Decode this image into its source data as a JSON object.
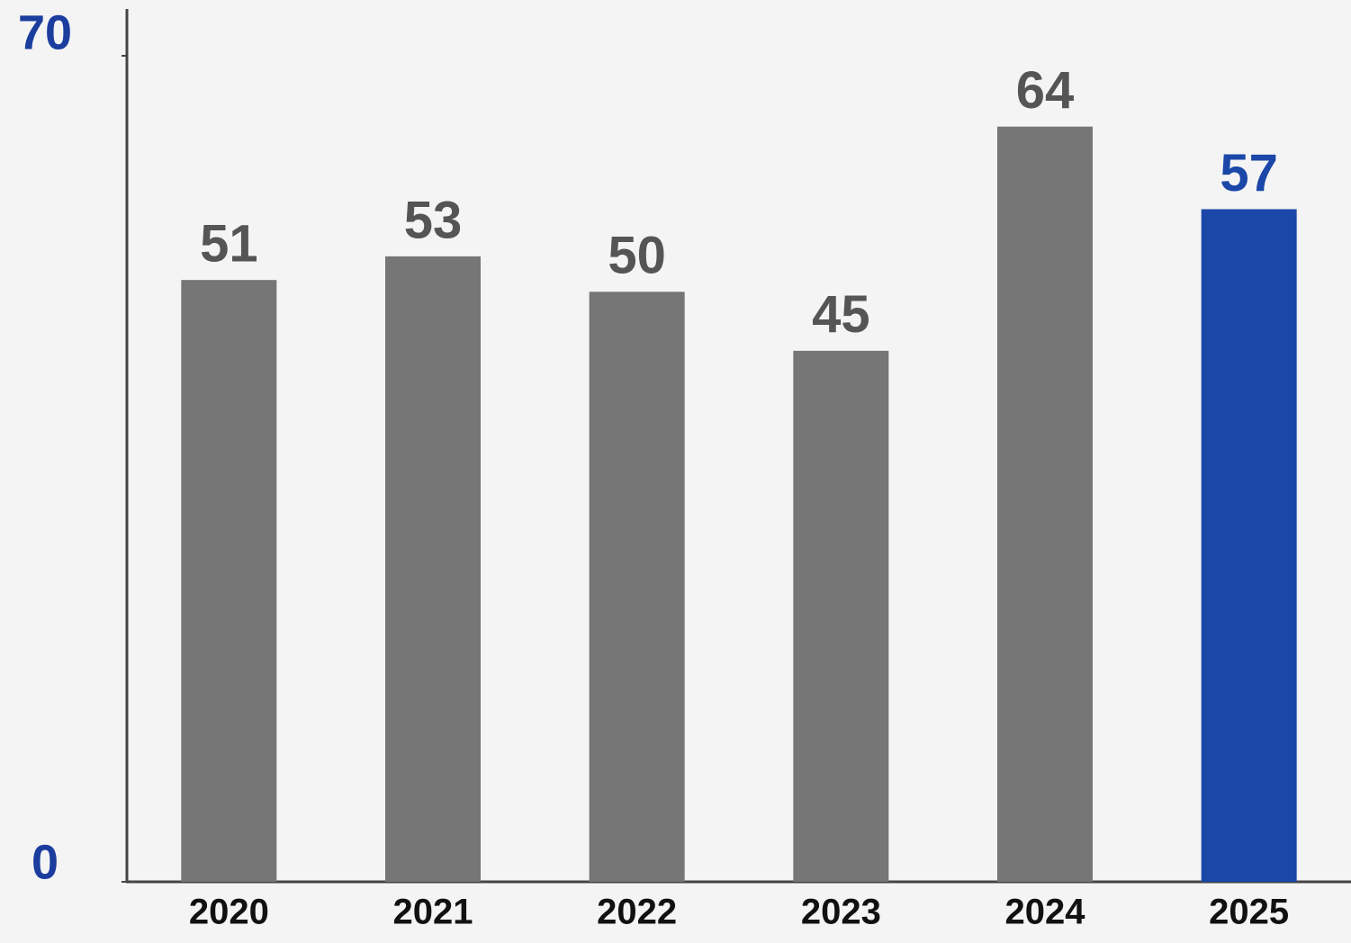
{
  "chart_data": {
    "type": "bar",
    "categories": [
      "2020",
      "2021",
      "2022",
      "2023",
      "2024",
      "2025"
    ],
    "values": [
      51,
      53,
      50,
      45,
      64,
      57
    ],
    "colors": [
      "#767676",
      "#767676",
      "#767676",
      "#767676",
      "#767676",
      "#1a47a8"
    ],
    "label_colors": [
      "#555555",
      "#555555",
      "#555555",
      "#555555",
      "#555555",
      "#1a47a8"
    ],
    "ylim": [
      0,
      70
    ],
    "yticks": [
      0,
      70
    ],
    "ytick_color": "#1a3d9e",
    "grid": false
  }
}
